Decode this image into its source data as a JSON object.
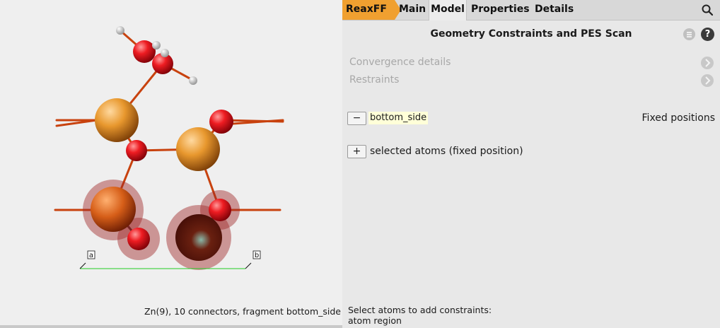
{
  "viewer": {
    "status_text": "Zn(9), 10 connectors, fragment bottom_side",
    "axis_a_label": "a",
    "axis_b_label": "b"
  },
  "tabs": [
    {
      "label": "ReaxFF",
      "active": false
    },
    {
      "label": "Main",
      "active": false
    },
    {
      "label": "Model",
      "active": true
    },
    {
      "label": "Properties",
      "active": false
    },
    {
      "label": "Details",
      "active": false
    }
  ],
  "panel": {
    "title": "Geometry Constraints and PES Scan",
    "sections": [
      {
        "label": "Convergence details"
      },
      {
        "label": "Restraints"
      }
    ],
    "groups": [
      {
        "toggle": "−",
        "name": "bottom_side",
        "value": "Fixed positions"
      },
      {
        "toggle": "+",
        "name": "selected atoms (fixed position)"
      }
    ],
    "hint_line1": "Select atoms to add constraints:",
    "hint_line2": "atom region",
    "help_label": "?"
  },
  "colors": {
    "accent_tab": "#f0a030",
    "atom_zn": "#e0922e",
    "atom_o": "#e8141c",
    "atom_h": "#ffffff",
    "selection_halo": "#a02020",
    "axis_line": "#22cc22"
  },
  "icons": [
    "search-icon",
    "menu-icon",
    "help-icon",
    "chevron-right-icon"
  ]
}
